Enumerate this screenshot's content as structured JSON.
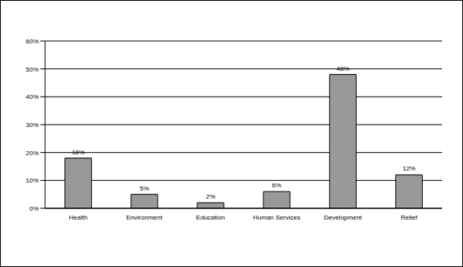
{
  "chart_data": {
    "type": "bar",
    "categories": [
      "Health",
      "Environment",
      "Education",
      "Human Services",
      "Development",
      "Relief"
    ],
    "values": [
      18,
      5,
      2,
      6,
      48,
      12
    ],
    "value_labels": [
      "18%",
      "5%",
      "2%",
      "6%",
      "48%",
      "12%"
    ],
    "color": "#999999",
    "ylim": [
      0,
      60
    ],
    "yticks": [
      {
        "value": 0,
        "label": "0%"
      },
      {
        "value": 10,
        "label": "10%"
      },
      {
        "value": 20,
        "label": "20%"
      },
      {
        "value": 30,
        "label": "30%"
      },
      {
        "value": 40,
        "label": "40%"
      },
      {
        "value": 50,
        "label": "50%"
      },
      {
        "value": 60,
        "label": "60%"
      }
    ],
    "grid": true,
    "data_labels": true
  }
}
